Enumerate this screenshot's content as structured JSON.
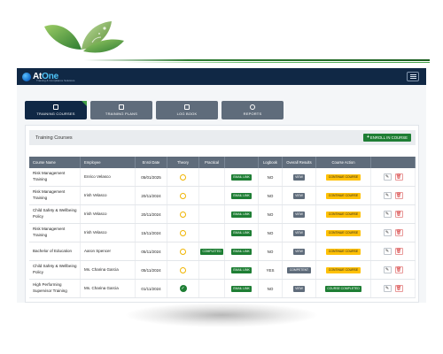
{
  "brand": {
    "name_primary": "At",
    "name_accent": "One",
    "tagline": "Training & Compliance Solutions"
  },
  "tabs": [
    {
      "label": "TRAINING COURSES",
      "icon": "book-icon",
      "active": true
    },
    {
      "label": "TRAINING PLANS",
      "icon": "clipboard-icon",
      "active": false
    },
    {
      "label": "LOG BOOK",
      "icon": "notebook-icon",
      "active": false
    },
    {
      "label": "REPORTS",
      "icon": "chart-circle-icon",
      "active": false
    }
  ],
  "card": {
    "title": "Training Courses",
    "enroll_label": "ENROLL IN COURSE"
  },
  "table": {
    "headers": [
      "Course Name",
      "Employee",
      "Enrol Date",
      "Theory",
      "Practical",
      "",
      "Logbook",
      "Overall Results",
      "Course Action",
      ""
    ],
    "rows": [
      {
        "course": "Risk Management Training",
        "employee": "Enrico Velasco",
        "date": "05/01/2025",
        "theory": "in-progress",
        "practical": "",
        "email": "EMAIL LINK",
        "logbook": "NO",
        "result": "VIEW",
        "action": "CONTINUE COURSE",
        "action_style": "yellow"
      },
      {
        "course": "Risk Management Training",
        "employee": "Irish Velasco",
        "date": "20/11/2024",
        "theory": "in-progress",
        "practical": "",
        "email": "EMAIL LINK",
        "logbook": "NO",
        "result": "VIEW",
        "action": "CONTINUE COURSE",
        "action_style": "yellow"
      },
      {
        "course": "Child Safety & Wellbeing Policy",
        "employee": "Irish Velasco",
        "date": "20/11/2024",
        "theory": "in-progress",
        "practical": "",
        "email": "EMAIL LINK",
        "logbook": "NO",
        "result": "VIEW",
        "action": "CONTINUE COURSE",
        "action_style": "yellow"
      },
      {
        "course": "Risk Management Training",
        "employee": "Irish Velasco",
        "date": "15/11/2024",
        "theory": "in-progress",
        "practical": "",
        "email": "EMAIL LINK",
        "logbook": "NO",
        "result": "VIEW",
        "action": "CONTINUE COURSE",
        "action_style": "yellow"
      },
      {
        "course": "Bachelor of Education",
        "employee": "Aaron Spencer",
        "date": "05/11/2024",
        "theory": "in-progress",
        "practical": "COMPLETED",
        "email": "EMAIL LINK",
        "logbook": "NO",
        "result": "VIEW",
        "action": "CONTINUE COURSE",
        "action_style": "yellow"
      },
      {
        "course": "Child Safety & Wellbeing Policy",
        "employee": "Ms. Charina Garcia",
        "date": "05/11/2024",
        "theory": "in-progress",
        "practical": "",
        "email": "EMAIL LINK",
        "logbook": "YES",
        "result": "COMPETENT",
        "action": "CONTINUE COURSE",
        "action_style": "yellow"
      },
      {
        "course": "High Performing Supervisor Training",
        "employee": "Ms. Charina Garcia",
        "date": "01/11/2024",
        "theory": "complete",
        "practical": "",
        "email": "EMAIL LINK",
        "logbook": "NO",
        "result": "VIEW",
        "action": "COURSE COMPLETED",
        "action_style": "green"
      }
    ]
  },
  "colors": {
    "navy": "#102845",
    "slate": "#5f6c7b",
    "green": "#1e7e34",
    "yellow": "#ffc107",
    "ring": "#f0b400"
  }
}
